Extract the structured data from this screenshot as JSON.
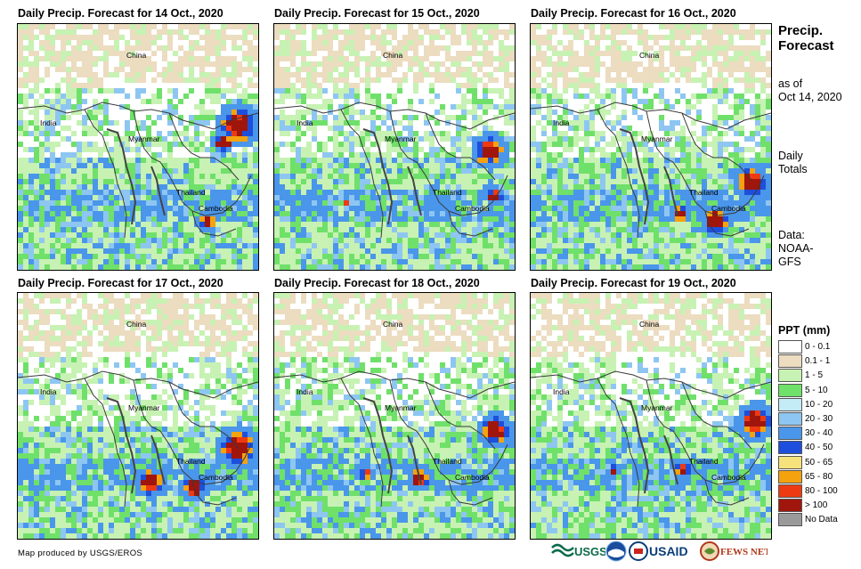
{
  "panels": [
    {
      "title": "Daily Precip. Forecast for 14 Oct., 2020"
    },
    {
      "title": "Daily Precip. Forecast for 15 Oct., 2020"
    },
    {
      "title": "Daily Precip. Forecast for 16 Oct., 2020"
    },
    {
      "title": "Daily Precip. Forecast for 17 Oct., 2020"
    },
    {
      "title": "Daily Precip. Forecast for 18 Oct., 2020"
    },
    {
      "title": "Daily Precip. Forecast for 19 Oct., 2020"
    }
  ],
  "map_labels": {
    "china": "China",
    "india": "India",
    "myanmar": "Myanmar",
    "thailand": "Thailand",
    "cambodia": "Cambodia"
  },
  "sidebar": {
    "title_line1": "Precip.",
    "title_line2": "Forecast",
    "asof_line1": "as of",
    "asof_line2": "Oct 14, 2020",
    "totals_line1": "Daily",
    "totals_line2": "Totals",
    "data_line1": "Data:",
    "data_line2": "NOAA-",
    "data_line3": "GFS"
  },
  "legend": {
    "title": "PPT (mm)",
    "items": [
      {
        "label": "0 - 0.1",
        "color": "#ffffff"
      },
      {
        "label": "0.1 - 1",
        "color": "#ecdcc0"
      },
      {
        "label": "1 - 5",
        "color": "#c7f2b3"
      },
      {
        "label": "5 - 10",
        "color": "#6fe06a"
      },
      {
        "label": "10 - 20",
        "color": "#c3ecf6"
      },
      {
        "label": "20 - 30",
        "color": "#8ec6f2"
      },
      {
        "label": "30 - 40",
        "color": "#4a96ea"
      },
      {
        "label": "40 - 50",
        "color": "#1d4fdc"
      },
      {
        "label": "50 - 65",
        "color": "#f6e27a"
      },
      {
        "label": "65 - 80",
        "color": "#f5a20f"
      },
      {
        "label": "80 - 100",
        "color": "#ee3a12"
      },
      {
        "label": "> 100",
        "color": "#a0150c"
      },
      {
        "label": "No Data",
        "color": "#9a9a9a"
      }
    ]
  },
  "credit": "Map produced by USGS/EROS",
  "logos": {
    "usgs": "USGS",
    "usaid": "USAID",
    "fewsnet": "FEWS NET"
  }
}
